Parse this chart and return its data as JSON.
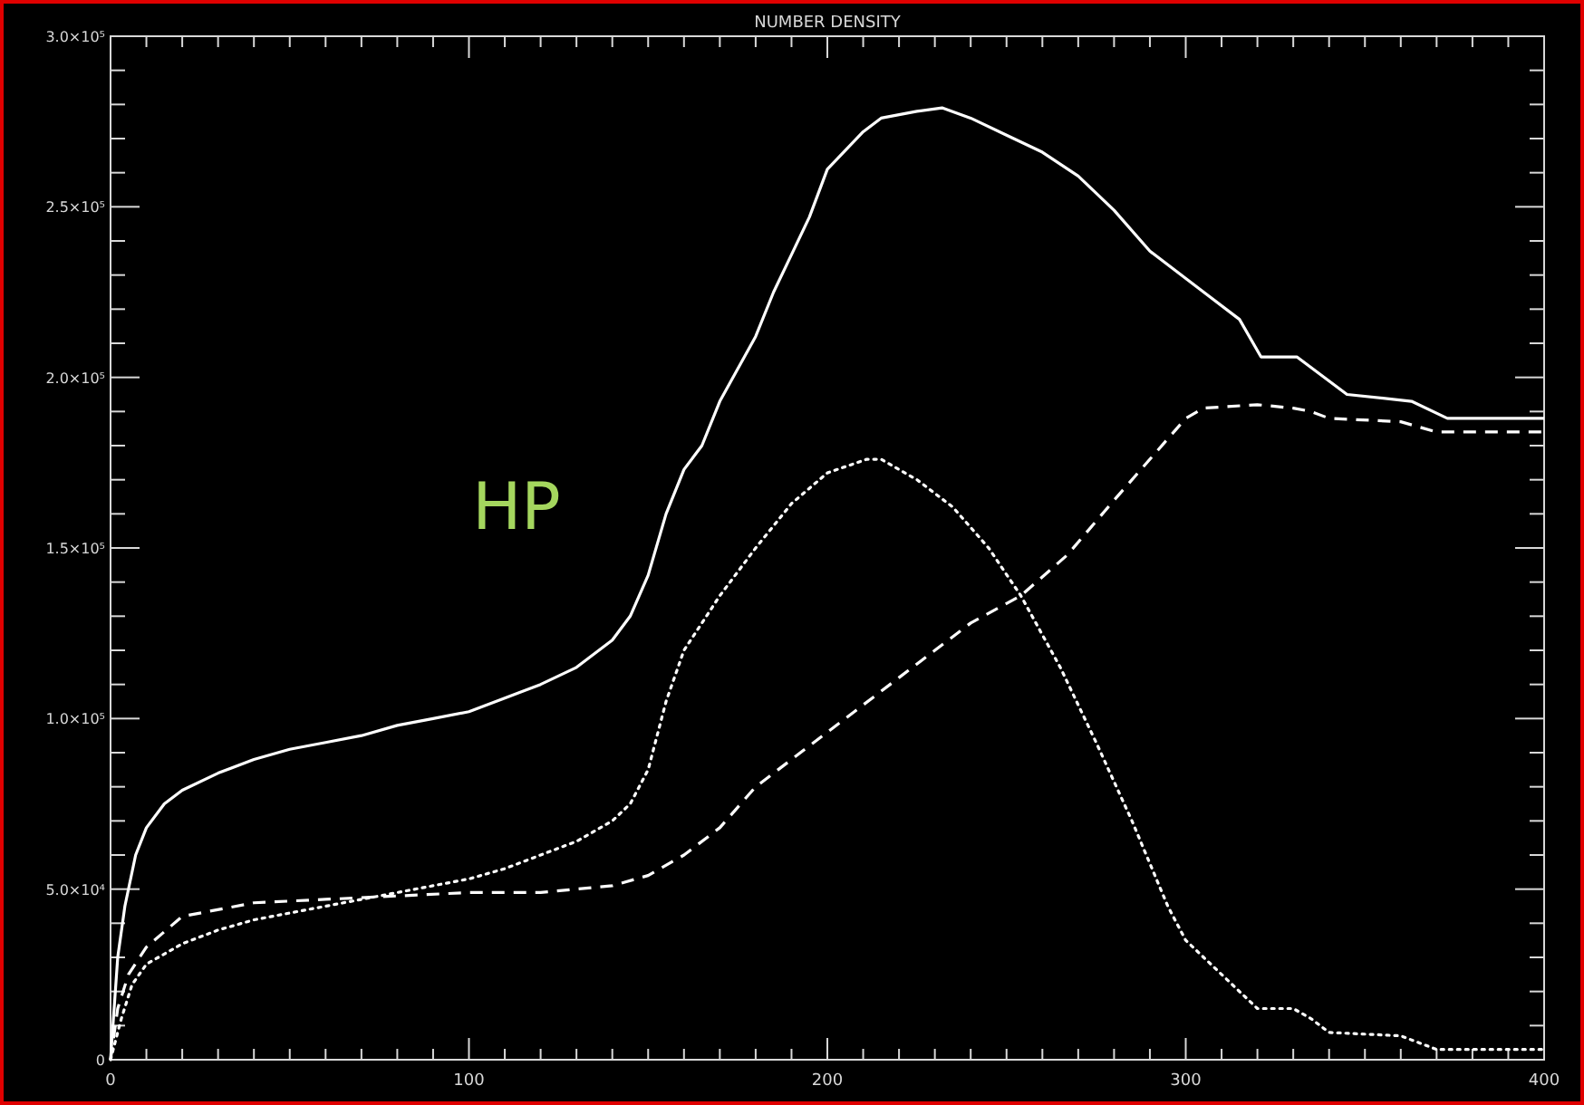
{
  "chart_data": {
    "type": "line",
    "title": "NUMBER DENSITY",
    "annotations": [
      "HP"
    ],
    "xlim": [
      0,
      400
    ],
    "xticks": [
      0,
      100,
      200,
      300,
      400
    ],
    "ylim": [
      0,
      300000
    ],
    "yticks": [
      {
        "value": 0,
        "label": "0"
      },
      {
        "value": 50000,
        "label": "5.0×10⁴"
      },
      {
        "value": 100000,
        "label": "1.0×10⁵"
      },
      {
        "value": 150000,
        "label": "1.5×10⁵"
      },
      {
        "value": 200000,
        "label": "2.0×10⁵"
      },
      {
        "value": 250000,
        "label": "2.5×10⁵"
      },
      {
        "value": 300000,
        "label": "3.0×10⁵"
      }
    ],
    "grid": false,
    "series": [
      {
        "color": "#ffffff",
        "line_style": "solid",
        "x": [
          0,
          1,
          2,
          4,
          7,
          10,
          15,
          20,
          30,
          40,
          50,
          60,
          70,
          80,
          90,
          100,
          110,
          120,
          130,
          140,
          145,
          150,
          155,
          160,
          165,
          170,
          180,
          185,
          190,
          195,
          200,
          210,
          215,
          225,
          232,
          240,
          250,
          260,
          270,
          280,
          290,
          305,
          315,
          321,
          331,
          345,
          363,
          373,
          400
        ],
        "values": [
          0,
          15000,
          30000,
          45000,
          60000,
          68000,
          75000,
          79000,
          84000,
          88000,
          91000,
          93000,
          95000,
          98000,
          100000,
          102000,
          106000,
          110000,
          115000,
          123000,
          130000,
          142000,
          160000,
          173000,
          180000,
          193000,
          212000,
          225000,
          236000,
          247000,
          261000,
          272000,
          276000,
          278000,
          279000,
          276000,
          271000,
          266000,
          259000,
          249000,
          237000,
          225000,
          217000,
          206000,
          206000,
          195000,
          193000,
          188000,
          188000
        ]
      },
      {
        "color": "#ffffff",
        "line_style": "dashed",
        "x": [
          0,
          2,
          5,
          10,
          20,
          40,
          60,
          80,
          100,
          120,
          140,
          150,
          160,
          170,
          180,
          190,
          200,
          210,
          220,
          230,
          240,
          254,
          267,
          280,
          290,
          300,
          305,
          320,
          330,
          335,
          340,
          360,
          370,
          400
        ],
        "values": [
          0,
          15000,
          25000,
          33000,
          42000,
          46000,
          47000,
          48000,
          49000,
          49000,
          51000,
          54000,
          60000,
          68000,
          80000,
          88000,
          96000,
          104000,
          112000,
          120000,
          128000,
          136000,
          148000,
          164000,
          176000,
          188000,
          191000,
          192000,
          191000,
          190000,
          188000,
          187000,
          184000,
          184000
        ]
      },
      {
        "color": "#ffffff",
        "line_style": "dotted",
        "x": [
          0,
          3,
          6,
          10,
          20,
          30,
          40,
          50,
          60,
          70,
          80,
          90,
          100,
          110,
          120,
          130,
          140,
          145,
          150,
          155,
          160,
          170,
          180,
          190,
          200,
          211,
          215,
          225,
          235,
          245,
          254,
          265,
          275,
          285,
          295,
          300,
          305,
          310,
          320,
          330,
          335,
          340,
          360,
          370,
          400
        ],
        "values": [
          0,
          12000,
          22000,
          28000,
          34000,
          38000,
          41000,
          43000,
          45000,
          47000,
          49000,
          51000,
          53000,
          56000,
          60000,
          64000,
          70000,
          75000,
          85000,
          105000,
          120000,
          136000,
          150000,
          163000,
          172000,
          176000,
          176000,
          170000,
          162000,
          150000,
          136000,
          115000,
          93000,
          70000,
          45000,
          35000,
          30000,
          25000,
          15000,
          15000,
          12000,
          8000,
          7000,
          3000,
          3000
        ]
      }
    ]
  }
}
